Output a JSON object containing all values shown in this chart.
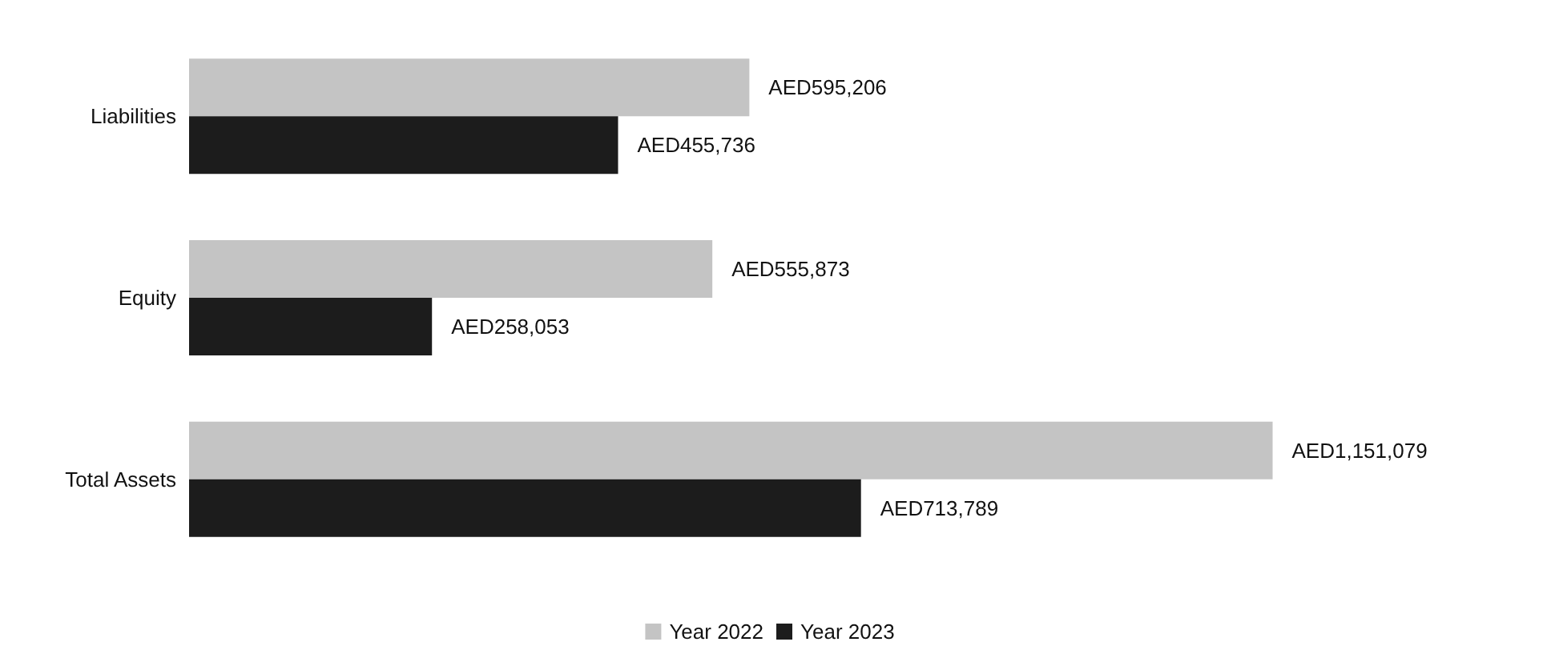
{
  "chart_data": {
    "type": "bar",
    "orientation": "horizontal",
    "categories": [
      "Liabilities",
      "Equity",
      "Total Assets"
    ],
    "series": [
      {
        "name": "Year 2022",
        "color": "#c4c4c4",
        "values": [
          595206,
          555873,
          1151079
        ],
        "value_labels": [
          "AED595,206",
          "AED555,873",
          "AED1,151,079"
        ]
      },
      {
        "name": "Year 2023",
        "color": "#1c1c1c",
        "values": [
          455736,
          258053,
          713789
        ],
        "value_labels": [
          "AED455,736",
          "AED258,053",
          "AED713,789"
        ]
      }
    ],
    "legend": "bottom",
    "grid": false
  }
}
